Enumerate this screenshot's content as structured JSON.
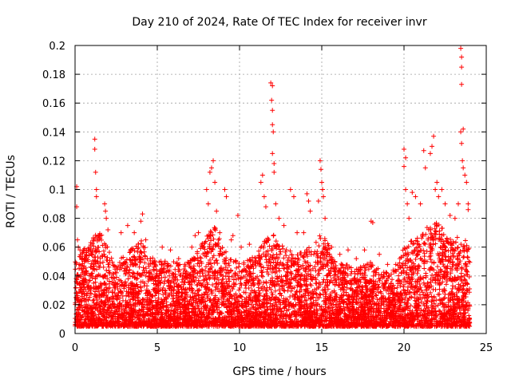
{
  "chart_data": {
    "type": "scatter",
    "title": "Day 210 of 2024, Rate Of TEC Index for receiver invr",
    "xlabel": "GPS time / hours",
    "ylabel": "ROTI / TECUs",
    "xlim": [
      0,
      25
    ],
    "ylim": [
      0,
      0.2
    ],
    "x_ticks": [
      "0",
      "5",
      "10",
      "15",
      "20",
      "25"
    ],
    "y_ticks": [
      "0",
      "0.02",
      "0.04",
      "0.06",
      "0.08",
      "0.1",
      "0.12",
      "0.14",
      "0.16",
      "0.18",
      "0.2"
    ],
    "grid": true,
    "marker": "+",
    "series_color": "#ff0000",
    "series": [
      {
        "name": "ROTI",
        "points": [
          [
            0.1,
            0.102
          ],
          [
            0.1,
            0.088
          ],
          [
            0.15,
            0.065
          ],
          [
            0.2,
            0.06
          ],
          [
            0.3,
            0.058
          ],
          [
            0.5,
            0.045
          ],
          [
            1.2,
            0.135
          ],
          [
            1.2,
            0.128
          ],
          [
            1.25,
            0.112
          ],
          [
            1.3,
            0.1
          ],
          [
            1.3,
            0.095
          ],
          [
            1.8,
            0.09
          ],
          [
            1.85,
            0.085
          ],
          [
            1.9,
            0.08
          ],
          [
            2.0,
            0.072
          ],
          [
            2.8,
            0.07
          ],
          [
            3.2,
            0.075
          ],
          [
            3.6,
            0.07
          ],
          [
            4.0,
            0.078
          ],
          [
            4.1,
            0.083
          ],
          [
            4.3,
            0.065
          ],
          [
            5.3,
            0.06
          ],
          [
            5.8,
            0.058
          ],
          [
            6.3,
            0.052
          ],
          [
            7.1,
            0.06
          ],
          [
            7.3,
            0.068
          ],
          [
            7.5,
            0.07
          ],
          [
            7.9,
            0.063
          ],
          [
            8.0,
            0.1
          ],
          [
            8.1,
            0.09
          ],
          [
            8.2,
            0.112
          ],
          [
            8.3,
            0.115
          ],
          [
            8.4,
            0.12
          ],
          [
            8.5,
            0.105
          ],
          [
            8.6,
            0.085
          ],
          [
            8.8,
            0.07
          ],
          [
            9.1,
            0.1
          ],
          [
            9.2,
            0.095
          ],
          [
            9.5,
            0.065
          ],
          [
            9.6,
            0.068
          ],
          [
            9.9,
            0.082
          ],
          [
            10.1,
            0.06
          ],
          [
            10.6,
            0.062
          ],
          [
            11.3,
            0.105
          ],
          [
            11.4,
            0.11
          ],
          [
            11.5,
            0.095
          ],
          [
            11.6,
            0.088
          ],
          [
            11.9,
            0.174
          ],
          [
            12.0,
            0.172
          ],
          [
            11.95,
            0.162
          ],
          [
            12.0,
            0.155
          ],
          [
            12.0,
            0.145
          ],
          [
            12.05,
            0.14
          ],
          [
            12.0,
            0.125
          ],
          [
            12.1,
            0.118
          ],
          [
            12.1,
            0.112
          ],
          [
            12.2,
            0.09
          ],
          [
            12.4,
            0.08
          ],
          [
            12.7,
            0.075
          ],
          [
            13.1,
            0.1
          ],
          [
            13.3,
            0.095
          ],
          [
            13.5,
            0.07
          ],
          [
            13.9,
            0.07
          ],
          [
            14.1,
            0.097
          ],
          [
            14.2,
            0.092
          ],
          [
            14.3,
            0.085
          ],
          [
            14.8,
            0.092
          ],
          [
            14.9,
            0.12
          ],
          [
            14.95,
            0.114
          ],
          [
            15.0,
            0.105
          ],
          [
            15.05,
            0.1
          ],
          [
            15.1,
            0.095
          ],
          [
            15.2,
            0.08
          ],
          [
            15.6,
            0.06
          ],
          [
            16.1,
            0.055
          ],
          [
            16.6,
            0.058
          ],
          [
            17.1,
            0.052
          ],
          [
            17.6,
            0.058
          ],
          [
            18.0,
            0.078
          ],
          [
            18.1,
            0.077
          ],
          [
            18.5,
            0.055
          ],
          [
            19.0,
            0.048
          ],
          [
            19.5,
            0.048
          ],
          [
            20.0,
            0.128
          ],
          [
            20.1,
            0.122
          ],
          [
            20.0,
            0.116
          ],
          [
            20.1,
            0.1
          ],
          [
            20.2,
            0.09
          ],
          [
            20.3,
            0.08
          ],
          [
            20.5,
            0.098
          ],
          [
            20.7,
            0.095
          ],
          [
            21.0,
            0.09
          ],
          [
            21.2,
            0.127
          ],
          [
            21.3,
            0.115
          ],
          [
            21.6,
            0.125
          ],
          [
            21.7,
            0.13
          ],
          [
            21.8,
            0.137
          ],
          [
            21.9,
            0.1
          ],
          [
            22.0,
            0.105
          ],
          [
            22.1,
            0.095
          ],
          [
            22.3,
            0.1
          ],
          [
            22.5,
            0.09
          ],
          [
            22.8,
            0.082
          ],
          [
            23.1,
            0.08
          ],
          [
            23.3,
            0.09
          ],
          [
            23.45,
            0.198
          ],
          [
            23.5,
            0.192
          ],
          [
            23.5,
            0.185
          ],
          [
            23.5,
            0.173
          ],
          [
            23.45,
            0.14
          ],
          [
            23.5,
            0.132
          ],
          [
            23.6,
            0.142
          ],
          [
            23.55,
            0.12
          ],
          [
            23.6,
            0.115
          ],
          [
            23.7,
            0.11
          ],
          [
            23.8,
            0.105
          ],
          [
            23.9,
            0.09
          ],
          [
            23.9,
            0.086
          ]
        ]
      }
    ],
    "background_band": {
      "x_range": [
        0,
        24
      ],
      "y_floor": 0.005,
      "density_per_hour": 260,
      "envelope": [
        [
          0,
          0.05
        ],
        [
          0.5,
          0.058
        ],
        [
          1,
          0.065
        ],
        [
          1.5,
          0.072
        ],
        [
          2,
          0.06
        ],
        [
          2.5,
          0.048
        ],
        [
          3,
          0.055
        ],
        [
          3.5,
          0.06
        ],
        [
          4,
          0.065
        ],
        [
          4.5,
          0.055
        ],
        [
          5,
          0.05
        ],
        [
          5.5,
          0.052
        ],
        [
          6,
          0.05
        ],
        [
          6.5,
          0.048
        ],
        [
          7,
          0.052
        ],
        [
          7.5,
          0.058
        ],
        [
          8,
          0.07
        ],
        [
          8.5,
          0.075
        ],
        [
          9,
          0.06
        ],
        [
          9.5,
          0.052
        ],
        [
          10,
          0.05
        ],
        [
          10.5,
          0.052
        ],
        [
          11,
          0.055
        ],
        [
          11.5,
          0.065
        ],
        [
          12,
          0.07
        ],
        [
          12.5,
          0.062
        ],
        [
          13,
          0.058
        ],
        [
          13.5,
          0.055
        ],
        [
          14,
          0.058
        ],
        [
          14.5,
          0.062
        ],
        [
          15,
          0.07
        ],
        [
          15.5,
          0.06
        ],
        [
          16,
          0.05
        ],
        [
          16.5,
          0.048
        ],
        [
          17,
          0.045
        ],
        [
          17.5,
          0.047
        ],
        [
          18,
          0.05
        ],
        [
          18.5,
          0.045
        ],
        [
          19,
          0.042
        ],
        [
          19.5,
          0.045
        ],
        [
          20,
          0.06
        ],
        [
          20.5,
          0.065
        ],
        [
          21,
          0.07
        ],
        [
          21.5,
          0.075
        ],
        [
          22,
          0.08
        ],
        [
          22.5,
          0.07
        ],
        [
          23,
          0.065
        ],
        [
          23.5,
          0.072
        ],
        [
          24,
          0.06
        ]
      ]
    }
  }
}
